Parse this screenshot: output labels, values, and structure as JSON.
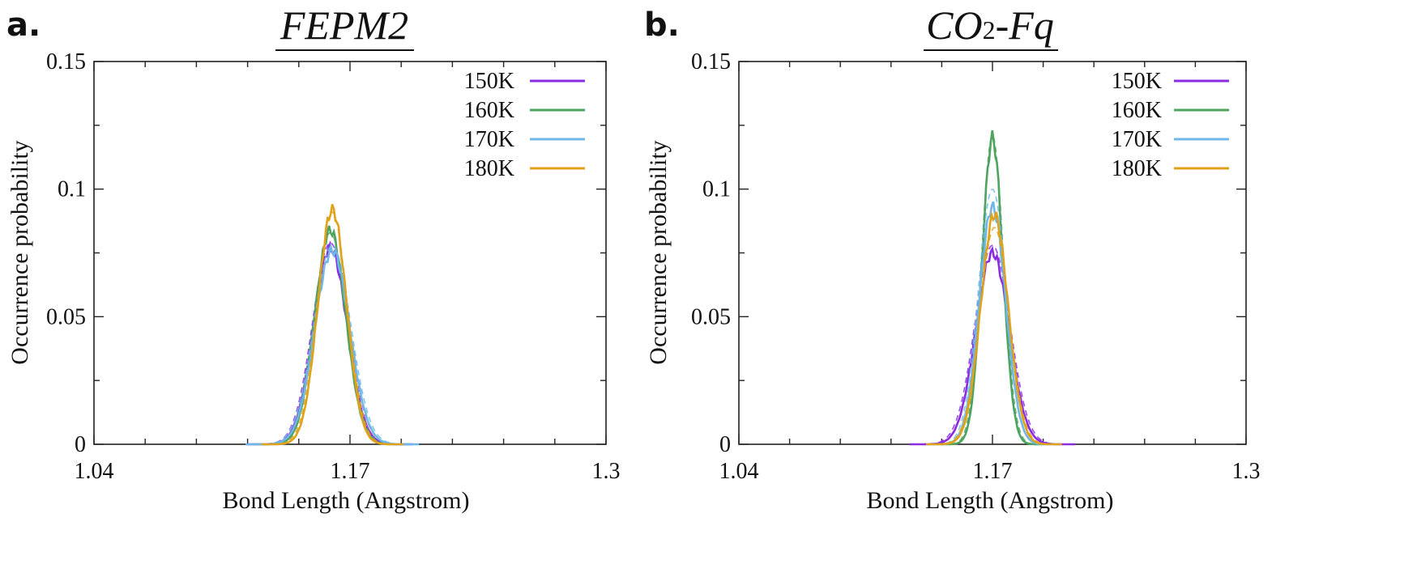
{
  "chart_data": [
    {
      "type": "line",
      "panel_label": "a.",
      "title": "FEPM2",
      "xlabel": "Bond Length (Angstrom)",
      "ylabel": "Occurrence probability",
      "xlim": [
        1.04,
        1.3
      ],
      "ylim": [
        0,
        0.15
      ],
      "xticks": [
        1.04,
        1.17,
        1.3
      ],
      "yticks": [
        0,
        0.05,
        0.1,
        0.15
      ],
      "xtick_labels": [
        "1.04",
        "1.17",
        "1.3"
      ],
      "ytick_labels": [
        "0",
        "0.05",
        "0.1",
        "0.15"
      ],
      "grid": false,
      "legend_position": "top-right",
      "series": [
        {
          "name": "150K",
          "color": "#8a2be2",
          "peak": 1.16,
          "height": 0.077,
          "sigma": 0.0085,
          "dashed_height": 0.079
        },
        {
          "name": "160K",
          "color": "#4ea35f",
          "peak": 1.16,
          "height": 0.084,
          "sigma": 0.0078,
          "dashed_height": 0.083
        },
        {
          "name": "170K",
          "color": "#6fb7e6",
          "peak": 1.161,
          "height": 0.076,
          "sigma": 0.0088,
          "dashed_height": 0.078
        },
        {
          "name": "180K",
          "color": "#e1a21b",
          "peak": 1.161,
          "height": 0.092,
          "sigma": 0.0072,
          "dashed_height": 0.091
        }
      ]
    },
    {
      "type": "line",
      "panel_label": "b.",
      "title": "CO2-Fq",
      "title_parts": [
        "CO",
        "2",
        "-Fq"
      ],
      "xlabel": "Bond Length (Angstrom)",
      "ylabel": "Occurrence probability",
      "xlim": [
        1.04,
        1.3
      ],
      "ylim": [
        0,
        0.15
      ],
      "xticks": [
        1.04,
        1.17,
        1.3
      ],
      "yticks": [
        0,
        0.05,
        0.1,
        0.15
      ],
      "xtick_labels": [
        "1.04",
        "1.17",
        "1.3"
      ],
      "ytick_labels": [
        "0",
        "0.05",
        "0.1",
        "0.15"
      ],
      "grid": false,
      "legend_position": "top-right",
      "series": [
        {
          "name": "150K",
          "color": "#8a2be2",
          "peak": 1.17,
          "height": 0.075,
          "sigma": 0.0085,
          "dashed_height": 0.078
        },
        {
          "name": "160K",
          "color": "#4ea35f",
          "peak": 1.17,
          "height": 0.12,
          "sigma": 0.0053,
          "dashed_height": 0.121
        },
        {
          "name": "170K",
          "color": "#6fb7e6",
          "peak": 1.17,
          "height": 0.093,
          "sigma": 0.0068,
          "dashed_height": 0.1
        },
        {
          "name": "180K",
          "color": "#e1a21b",
          "peak": 1.171,
          "height": 0.09,
          "sigma": 0.007,
          "dashed_height": 0.085
        }
      ]
    }
  ]
}
